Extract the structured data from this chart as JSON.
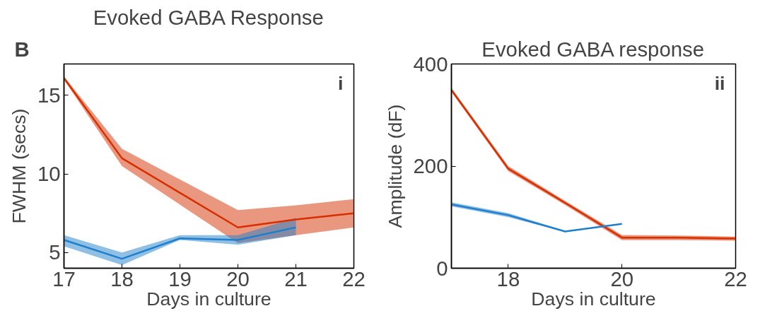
{
  "chart_data": [
    {
      "type": "line",
      "title": "Evoked GABA Response",
      "xlabel": "Days in culture",
      "ylabel": "FWHM (secs)",
      "annotations": [
        "B",
        "i"
      ],
      "xlim": [
        17,
        22
      ],
      "xticks": [
        17,
        18,
        19,
        20,
        21,
        22
      ],
      "ylim": [
        4,
        17
      ],
      "yticks": [
        5,
        10,
        15
      ],
      "series": [
        {
          "color": "#d62f00",
          "x": [
            17,
            18,
            20,
            21,
            22
          ],
          "values": [
            16.1,
            11.0,
            6.6,
            7.1,
            7.5
          ],
          "lower": [
            16.0,
            10.5,
            5.6,
            6.1,
            6.6
          ],
          "upper": [
            16.2,
            11.6,
            7.7,
            8.0,
            8.4
          ]
        },
        {
          "color": "#1f7fcc",
          "x": [
            17,
            18,
            19,
            20,
            21
          ],
          "values": [
            5.8,
            4.6,
            5.9,
            5.8,
            6.6
          ],
          "lower": [
            5.4,
            4.2,
            5.8,
            5.5,
            6.1
          ],
          "upper": [
            6.1,
            5.0,
            6.1,
            6.1,
            7.2
          ]
        }
      ]
    },
    {
      "type": "line",
      "title": "Evoked GABA response",
      "xlabel": "Days in culture",
      "ylabel": "Amplitude (dF)",
      "annotations": [
        "ii"
      ],
      "xlim": [
        17,
        22
      ],
      "xticks": [
        18,
        20,
        22
      ],
      "ylim": [
        0,
        400
      ],
      "yticks": [
        0,
        200,
        400
      ],
      "series": [
        {
          "color": "#d62f00",
          "x": [
            17,
            18,
            19,
            20,
            21,
            22
          ],
          "values": [
            349,
            195,
            128,
            60,
            60,
            58
          ],
          "lower": [
            345,
            190,
            124,
            55,
            55,
            54
          ],
          "upper": [
            353,
            200,
            132,
            65,
            64,
            62
          ]
        },
        {
          "color": "#1f7fcc",
          "x": [
            17,
            18,
            19,
            20
          ],
          "values": [
            125,
            104,
            72,
            87
          ],
          "lower": [
            121,
            100,
            71,
            86
          ],
          "upper": [
            129,
            108,
            73,
            88
          ]
        }
      ]
    }
  ]
}
